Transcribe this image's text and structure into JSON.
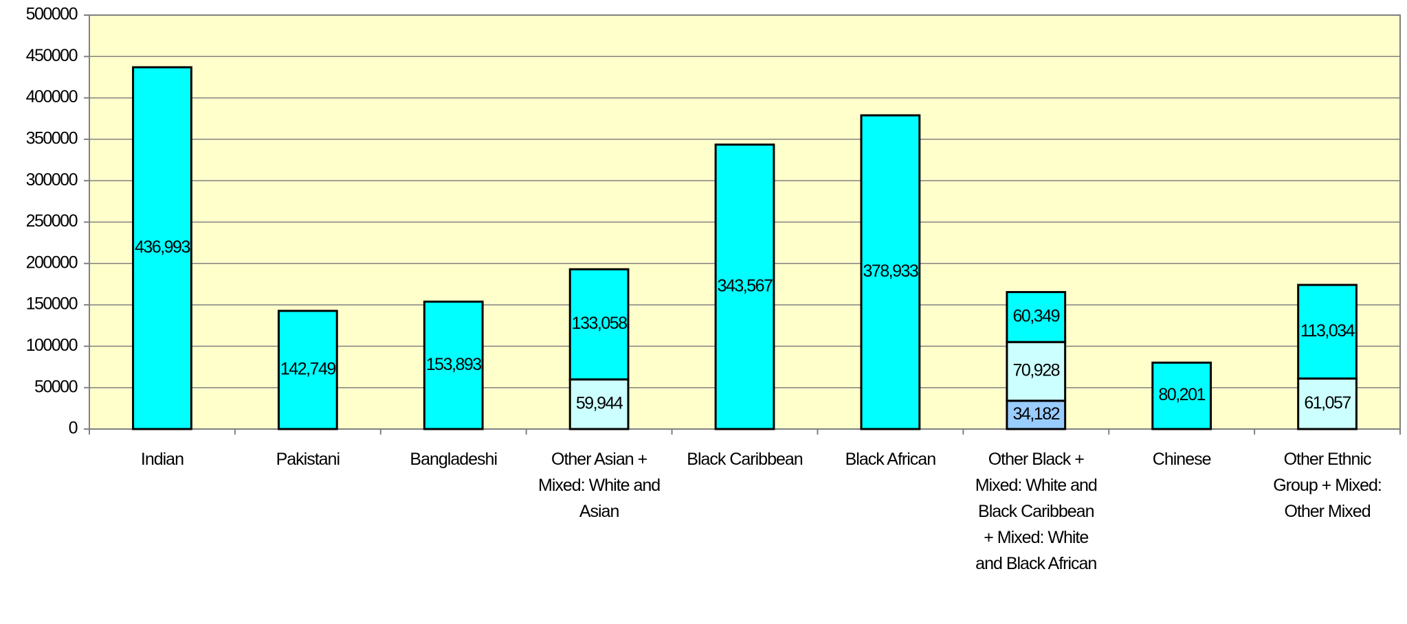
{
  "chart_data": {
    "type": "bar",
    "stacked": true,
    "categories": [
      "Indian",
      "Pakistani",
      "Bangladeshi",
      "Other Asian + Mixed: White and Asian",
      "Black Caribbean",
      "Black African",
      "Other Black + Mixed: White and Black Caribbean + Mixed: White and Black African",
      "Chinese",
      "Other Ethnic Group + Mixed: Other Mixed"
    ],
    "series": [
      {
        "color": "#99ccff",
        "values": [
          null,
          null,
          null,
          null,
          null,
          null,
          34182,
          null,
          null
        ],
        "value_labels": [
          null,
          null,
          null,
          null,
          null,
          null,
          "34,182",
          null,
          null
        ]
      },
      {
        "color": "#ccffff",
        "values": [
          null,
          null,
          null,
          59944,
          null,
          null,
          70928,
          null,
          61057
        ],
        "value_labels": [
          null,
          null,
          null,
          "59,944",
          null,
          null,
          "70,928",
          null,
          "61,057"
        ]
      },
      {
        "color": "#00ffff",
        "values": [
          436993,
          142749,
          153893,
          133058,
          343567,
          378933,
          60349,
          80201,
          113034
        ],
        "value_labels": [
          "436,993",
          "142,749",
          "153,893",
          "133,058",
          "343,567",
          "378,933",
          "60,349",
          "80,201",
          "113,034"
        ]
      }
    ],
    "ylim": [
      0,
      500000
    ],
    "yticks": [
      0,
      50000,
      100000,
      150000,
      200000,
      250000,
      300000,
      350000,
      400000,
      450000,
      500000
    ],
    "grid": true,
    "plot_background": "#ffffcc"
  }
}
